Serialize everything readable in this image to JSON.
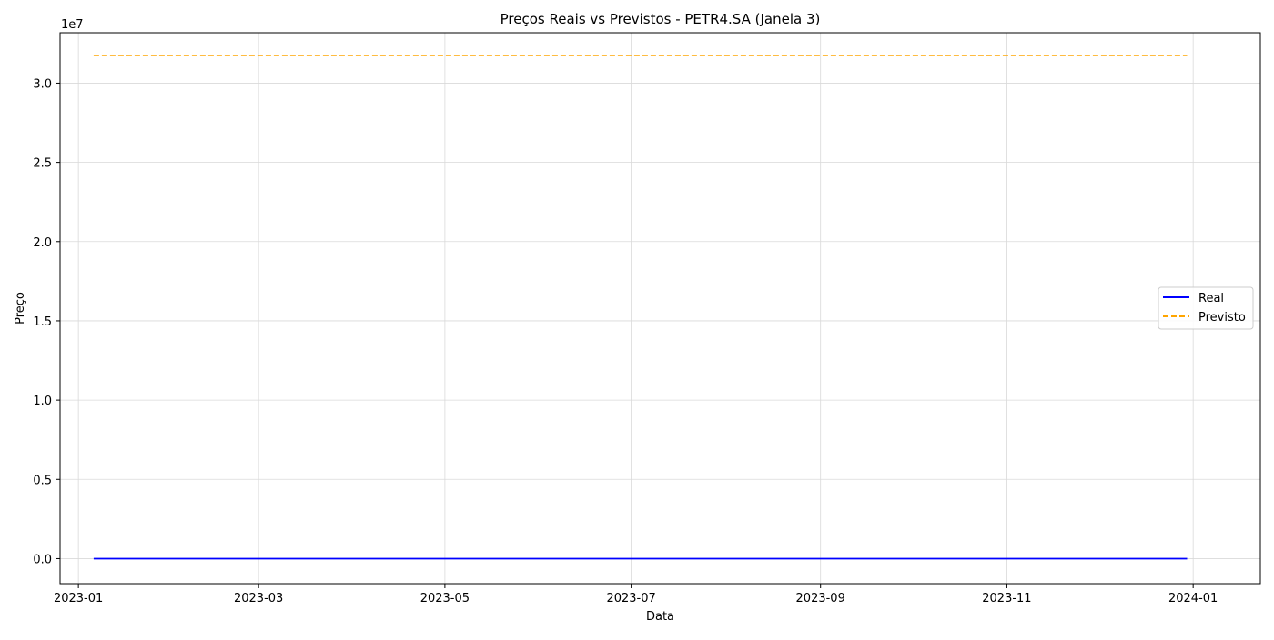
{
  "chart_data": {
    "type": "line",
    "title": "Preços Reais vs Previstos - PETR4.SA (Janela 3)",
    "xlabel": "Data",
    "ylabel": "Preço",
    "y_offset_label": "1e7",
    "y_scale": 10000000,
    "grid": true,
    "legend_position": "center-right",
    "x_ticks": [
      "2023-01-01",
      "2023-03-01",
      "2023-05-01",
      "2023-07-01",
      "2023-09-01",
      "2023-11-01",
      "2024-01-01"
    ],
    "x_tick_labels": [
      "2023-01",
      "2023-03",
      "2023-05",
      "2023-07",
      "2023-09",
      "2023-11",
      "2024-01"
    ],
    "y_ticks": [
      0,
      5000000,
      10000000,
      15000000,
      20000000,
      25000000,
      30000000
    ],
    "y_tick_labels": [
      "0.0",
      "0.5",
      "1.0",
      "1.5",
      "2.0",
      "2.5",
      "3.0"
    ],
    "xlim": [
      "2022-12-26",
      "2024-01-23"
    ],
    "ylim": [
      -1580000,
      33180000
    ],
    "series": [
      {
        "name": "Real",
        "color": "#0000ff",
        "style": "solid",
        "x": [
          "2023-01-06",
          "2023-12-30"
        ],
        "y": [
          30,
          30
        ]
      },
      {
        "name": "Previsto",
        "color": "#ffa500",
        "style": "dashed",
        "x": [
          "2023-01-06",
          "2023-12-30"
        ],
        "y": [
          31750000,
          31750000
        ]
      }
    ]
  }
}
